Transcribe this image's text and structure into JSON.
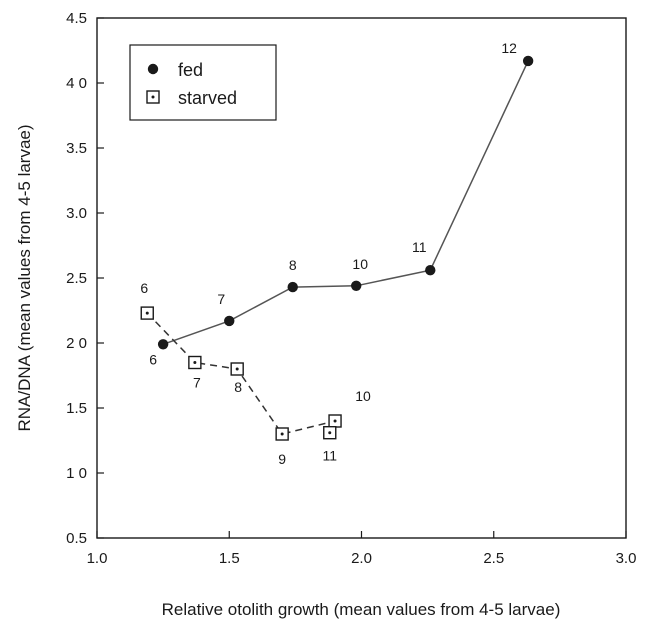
{
  "chart_data": {
    "type": "scatter",
    "title": "",
    "xlabel": "Relative  otolith  growth (mean values from 4-5 larvae)",
    "ylabel": "RNA/DNA (mean values from 4-5 larvae)",
    "xlim": [
      1.0,
      3.0
    ],
    "ylim": [
      0.5,
      4.5
    ],
    "x_ticks": [
      1.0,
      1.5,
      2.0,
      2.5,
      3.0
    ],
    "x_tick_labels": [
      "1.0",
      "1.5",
      "2.0",
      "2.5",
      "3.0"
    ],
    "y_ticks": [
      0.5,
      1.0,
      1.5,
      2.0,
      2.5,
      3.0,
      3.5,
      4.0,
      4.5
    ],
    "y_tick_labels": [
      "0.5",
      "1 0",
      "1.5",
      "2 0",
      "2.5",
      "3.0",
      "3.5",
      "4 0",
      "4.5"
    ],
    "grid": false,
    "legend_position": "top-left",
    "series": [
      {
        "name": "fed",
        "marker": "filled-circle",
        "line": "solid",
        "color": "#1a1a1a",
        "line_color": "#555555",
        "points": [
          {
            "x": 1.25,
            "y": 1.99,
            "label": "6"
          },
          {
            "x": 1.5,
            "y": 2.17,
            "label": "7"
          },
          {
            "x": 1.74,
            "y": 2.43,
            "label": "8"
          },
          {
            "x": 1.98,
            "y": 2.44,
            "label": "10"
          },
          {
            "x": 2.26,
            "y": 2.56,
            "label": "11"
          },
          {
            "x": 2.63,
            "y": 4.17,
            "label": "12"
          }
        ]
      },
      {
        "name": "starved",
        "marker": "dotted-square",
        "line": "dashed",
        "color": "#1a1a1a",
        "line_color": "#333333",
        "points": [
          {
            "x": 1.19,
            "y": 2.23,
            "label": "6"
          },
          {
            "x": 1.37,
            "y": 1.85,
            "label": "7"
          },
          {
            "x": 1.53,
            "y": 1.8,
            "label": "8"
          },
          {
            "x": 1.7,
            "y": 1.3,
            "label": "9"
          },
          {
            "x": 1.9,
            "y": 1.4,
            "label": "10"
          },
          {
            "x": 1.88,
            "y": 1.31,
            "label": "11"
          }
        ]
      }
    ]
  }
}
